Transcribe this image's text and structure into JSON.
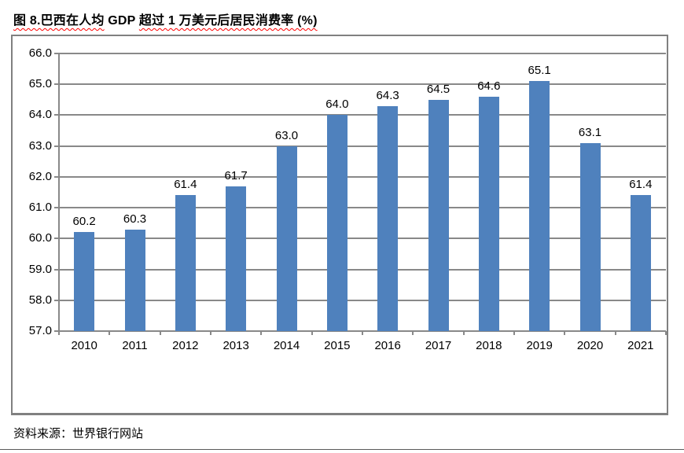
{
  "page": {
    "title_segments": [
      {
        "text": "图 8.巴西在人均",
        "spellcheck_underline": true
      },
      {
        "text": " GDP ",
        "spellcheck_underline": false
      },
      {
        "text": "超过 1 万美元后居民消费率 (%)",
        "spellcheck_underline": true
      }
    ],
    "source_note": "资料来源：世界银行网站"
  },
  "colors": {
    "bar": "#4F81BD",
    "gridline": "#898989",
    "axis": "#898989",
    "chart_border": "#808080",
    "text": "#000000",
    "spellcheck_underline": "#FF0000"
  },
  "chart_data": {
    "type": "bar",
    "title": "图 8.巴西在人均 GDP 超过 1 万美元后居民消费率 (%)",
    "categories": [
      "2010",
      "2011",
      "2012",
      "2013",
      "2014",
      "2015",
      "2016",
      "2017",
      "2018",
      "2019",
      "2020",
      "2021"
    ],
    "values": [
      60.2,
      60.3,
      61.4,
      61.7,
      63.0,
      64.0,
      64.3,
      64.5,
      64.6,
      65.1,
      63.1,
      61.4
    ],
    "data_labels": [
      "60.2",
      "60.3",
      "61.4",
      "61.7",
      "63.0",
      "64.0",
      "64.3",
      "64.5",
      "64.6",
      "65.1",
      "63.1",
      "61.4"
    ],
    "xlabel": "",
    "ylabel": "",
    "ylim": [
      57.0,
      66.0
    ],
    "y_step": 1.0,
    "y_tick_labels": [
      "57.0",
      "58.0",
      "59.0",
      "60.0",
      "61.0",
      "62.0",
      "63.0",
      "64.0",
      "65.0",
      "66.0"
    ],
    "grid": true,
    "legend": "none",
    "source": "资料来源：世界银行网站"
  }
}
